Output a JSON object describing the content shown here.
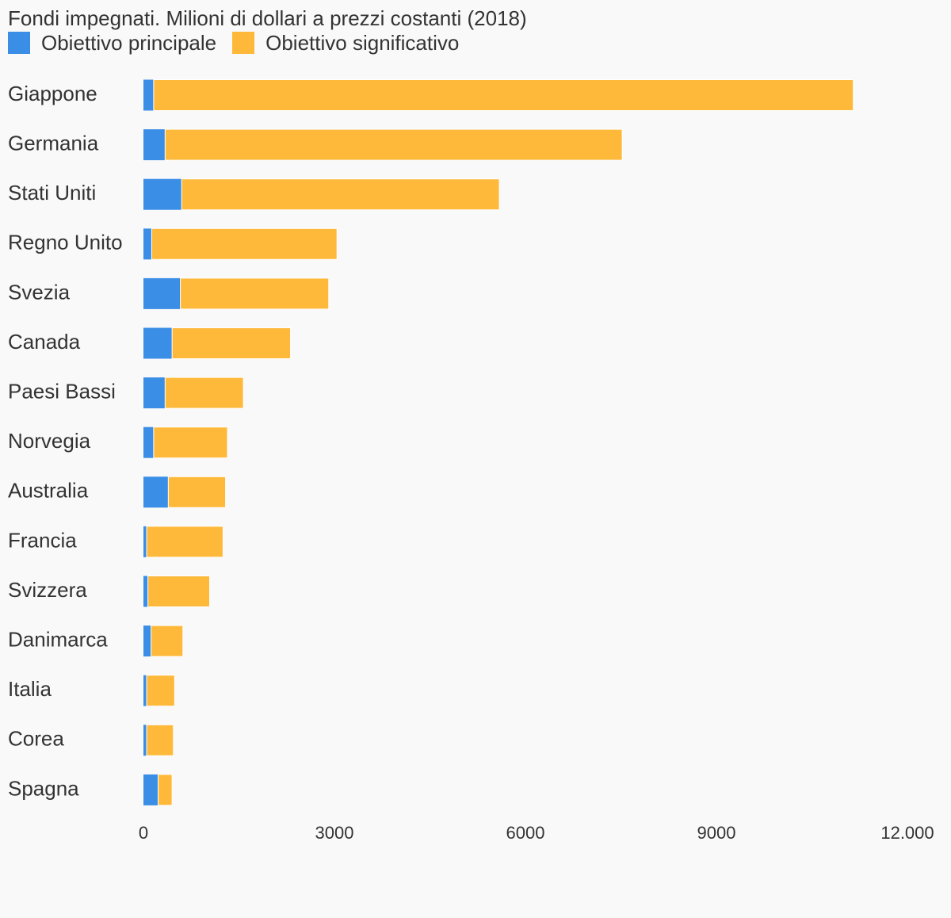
{
  "chart_data": {
    "type": "bar",
    "orientation": "horizontal",
    "stacked": true,
    "title": "Fondi impegnati. Milioni di dollari a prezzi costanti (2018)",
    "categories": [
      "Giappone",
      "Germania",
      "Stati Uniti",
      "Regno Unito",
      "Svezia",
      "Canada",
      "Paesi Bassi",
      "Norvegia",
      "Australia",
      "Francia",
      "Svizzera",
      "Danimarca",
      "Italia",
      "Corea",
      "Spagna"
    ],
    "series": [
      {
        "name": "Obiettivo principale",
        "color": "#3a8ee6",
        "values": [
          160,
          340,
          600,
          130,
          580,
          450,
          340,
          160,
          390,
          50,
          70,
          120,
          50,
          50,
          230
        ]
      },
      {
        "name": "Obiettivo significativo",
        "color": "#ffb93a",
        "values": [
          10990,
          7180,
          4990,
          2910,
          2330,
          1860,
          1230,
          1160,
          900,
          1200,
          970,
          500,
          440,
          420,
          220
        ]
      }
    ],
    "xlim": [
      0,
      12000
    ],
    "xticks": [
      0,
      3000,
      6000,
      9000,
      12000
    ],
    "xtick_labels": [
      "0",
      "3000",
      "6000",
      "9000",
      "12.000"
    ],
    "grid": false,
    "legend_position": "top-left"
  }
}
